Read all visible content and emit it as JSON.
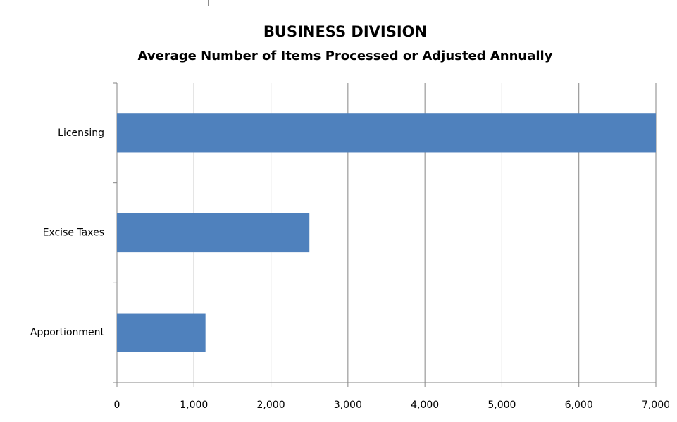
{
  "chart_data": {
    "type": "bar",
    "orientation": "horizontal",
    "title": "BUSINESS DIVISION",
    "subtitle": "Average Number of Items Processed or Adjusted Annually",
    "categories": [
      "Licensing",
      "Excise Taxes",
      "Apportionment"
    ],
    "values": [
      7000,
      2500,
      1150
    ],
    "color": "#4f81bd",
    "xlim": [
      0,
      7000
    ],
    "xticks": [
      0,
      {
        "value": 1000,
        "label": "1,000"
      },
      {
        "value": 2000,
        "label": "2,000"
      },
      {
        "value": 3000,
        "label": "3,000"
      },
      {
        "value": 4000,
        "label": "4,000"
      },
      {
        "value": 5000,
        "label": "5,000"
      },
      {
        "value": 6000,
        "label": "6,000"
      },
      {
        "value": 7000,
        "label": "7,000"
      }
    ],
    "grid": true
  }
}
